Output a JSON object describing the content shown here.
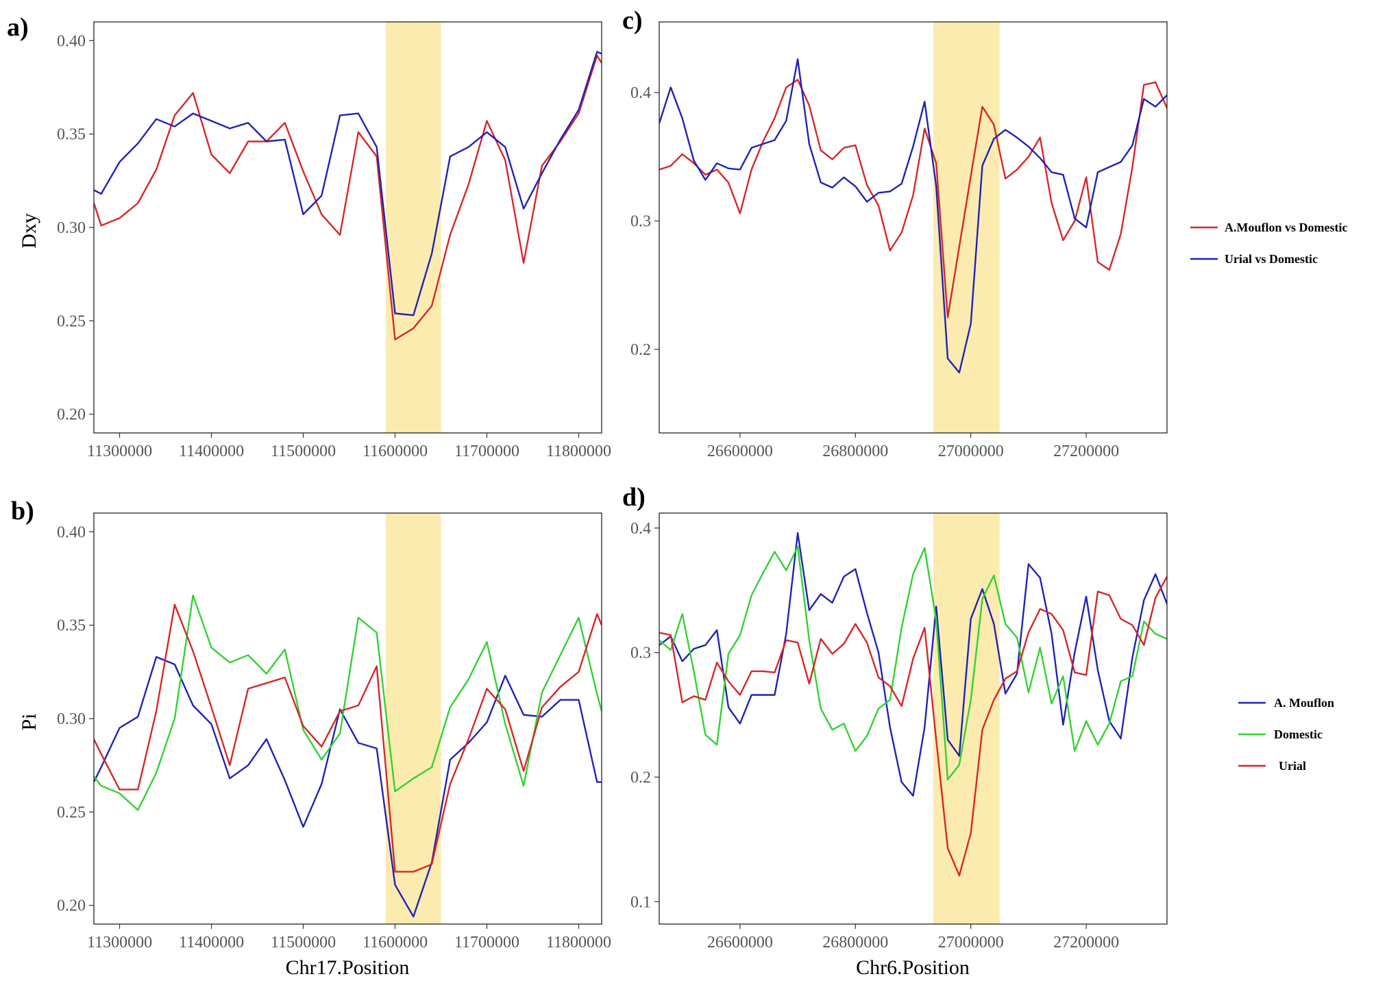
{
  "colors": {
    "highlight": "#FBEBAF",
    "red": "#D62728",
    "blue": "#1F23B5",
    "green": "#32D232"
  },
  "legends": {
    "dxy": [
      {
        "label": "A.Mouflon vs Domestic",
        "color": "#D62728"
      },
      {
        "label": "Urial vs Domestic",
        "color": "#1F23B5"
      }
    ],
    "pi": [
      {
        "label": "A. Mouflon",
        "color": "#1F23B5"
      },
      {
        "label": "Domestic",
        "color": "#32D232"
      },
      {
        "label": "Urial",
        "color": "#D62728"
      }
    ]
  },
  "chart_data": [
    {
      "id": "a",
      "panel_label": "a)",
      "type": "line",
      "ylabel": "Dxy",
      "xlabel": "",
      "xlim": [
        11272000,
        11825000
      ],
      "ylim": [
        0.19,
        0.41
      ],
      "xticks": [
        11300000,
        11400000,
        11500000,
        11600000,
        11700000,
        11800000
      ],
      "xtick_labels": [
        "11300000",
        "11400000",
        "11500000",
        "11600000",
        "11700000",
        "11800000"
      ],
      "yticks": [
        0.2,
        0.25,
        0.3,
        0.35,
        0.4
      ],
      "ytick_labels": [
        "0.20",
        "0.25",
        "0.30",
        "0.35",
        "0.40"
      ],
      "highlight": [
        11590000,
        11650000
      ],
      "x": [
        11272000,
        11280000,
        11300000,
        11320000,
        11340000,
        11360000,
        11380000,
        11400000,
        11420000,
        11440000,
        11460000,
        11480000,
        11500000,
        11520000,
        11540000,
        11560000,
        11580000,
        11600000,
        11620000,
        11640000,
        11660000,
        11680000,
        11700000,
        11720000,
        11740000,
        11760000,
        11780000,
        11800000,
        11820000,
        11825000
      ],
      "series": [
        {
          "name": "A.Mouflon vs Domestic",
          "color": "#D62728",
          "values": [
            0.313,
            0.301,
            0.305,
            0.313,
            0.331,
            0.36,
            0.372,
            0.339,
            0.329,
            0.346,
            0.346,
            0.356,
            0.33,
            0.307,
            0.296,
            0.351,
            0.338,
            0.24,
            0.246,
            0.258,
            0.296,
            0.323,
            0.357,
            0.336,
            0.281,
            0.333,
            0.346,
            0.361,
            0.392,
            0.388
          ]
        },
        {
          "name": "Urial vs Domestic",
          "color": "#1F23B5",
          "values": [
            0.32,
            0.318,
            0.335,
            0.345,
            0.358,
            0.354,
            0.361,
            0.357,
            0.353,
            0.356,
            0.346,
            0.347,
            0.307,
            0.317,
            0.36,
            0.361,
            0.343,
            0.254,
            0.253,
            0.286,
            0.338,
            0.343,
            0.351,
            0.343,
            0.31,
            0.329,
            0.347,
            0.363,
            0.394,
            0.393
          ]
        }
      ]
    },
    {
      "id": "b",
      "panel_label": "b)",
      "type": "line",
      "ylabel": "Pi",
      "xlabel": "Chr17.Position",
      "xlim": [
        11272000,
        11825000
      ],
      "ylim": [
        0.19,
        0.41
      ],
      "xticks": [
        11300000,
        11400000,
        11500000,
        11600000,
        11700000,
        11800000
      ],
      "xtick_labels": [
        "11300000",
        "11400000",
        "11500000",
        "11600000",
        "11700000",
        "11800000"
      ],
      "yticks": [
        0.2,
        0.25,
        0.3,
        0.35,
        0.4
      ],
      "ytick_labels": [
        "0.20",
        "0.25",
        "0.30",
        "0.35",
        "0.40"
      ],
      "highlight": [
        11590000,
        11650000
      ],
      "x": [
        11272000,
        11280000,
        11300000,
        11320000,
        11340000,
        11360000,
        11380000,
        11400000,
        11420000,
        11440000,
        11460000,
        11480000,
        11500000,
        11520000,
        11540000,
        11560000,
        11580000,
        11600000,
        11620000,
        11640000,
        11660000,
        11680000,
        11700000,
        11720000,
        11740000,
        11760000,
        11780000,
        11800000,
        11820000,
        11825000
      ],
      "series": [
        {
          "name": "A. Mouflon",
          "color": "#1F23B5",
          "values": [
            0.266,
            0.274,
            0.295,
            0.301,
            0.333,
            0.329,
            0.307,
            0.297,
            0.268,
            0.275,
            0.289,
            0.267,
            0.242,
            0.265,
            0.305,
            0.287,
            0.284,
            0.211,
            0.194,
            0.223,
            0.278,
            0.287,
            0.298,
            0.323,
            0.302,
            0.301,
            0.31,
            0.31,
            0.266,
            0.266
          ]
        },
        {
          "name": "Domestic",
          "color": "#32D232",
          "values": [
            0.269,
            0.264,
            0.26,
            0.251,
            0.271,
            0.3,
            0.366,
            0.338,
            0.33,
            0.334,
            0.324,
            0.337,
            0.294,
            0.278,
            0.292,
            0.354,
            0.346,
            0.261,
            0.268,
            0.274,
            0.306,
            0.321,
            0.341,
            0.297,
            0.264,
            0.314,
            0.334,
            0.354,
            0.313,
            0.304
          ]
        },
        {
          "name": "Urial",
          "color": "#D62728",
          "values": [
            0.289,
            0.281,
            0.262,
            0.262,
            0.304,
            0.361,
            0.336,
            0.306,
            0.275,
            0.316,
            0.319,
            0.322,
            0.296,
            0.285,
            0.304,
            0.307,
            0.328,
            0.218,
            0.218,
            0.222,
            0.265,
            0.289,
            0.316,
            0.305,
            0.272,
            0.306,
            0.317,
            0.325,
            0.356,
            0.35
          ]
        }
      ]
    },
    {
      "id": "c",
      "panel_label": "c)",
      "type": "line",
      "ylabel": "",
      "xlabel": "",
      "xlim": [
        26460000,
        27340000
      ],
      "ylim": [
        0.135,
        0.455
      ],
      "xticks": [
        26600000,
        26800000,
        27000000,
        27200000
      ],
      "xtick_labels": [
        "26600000",
        "26800000",
        "27000000",
        "27200000"
      ],
      "yticks": [
        0.2,
        0.3,
        0.4
      ],
      "ytick_labels": [
        "0.2",
        "0.3",
        "0.4"
      ],
      "highlight": [
        26935000,
        27050000
      ],
      "x": [
        26460000,
        26480000,
        26500000,
        26520000,
        26540000,
        26560000,
        26580000,
        26600000,
        26620000,
        26640000,
        26660000,
        26680000,
        26700000,
        26720000,
        26740000,
        26760000,
        26780000,
        26800000,
        26820000,
        26840000,
        26860000,
        26880000,
        26900000,
        26920000,
        26940000,
        26960000,
        26980000,
        27000000,
        27020000,
        27040000,
        27060000,
        27080000,
        27100000,
        27120000,
        27140000,
        27160000,
        27180000,
        27200000,
        27220000,
        27240000,
        27260000,
        27280000,
        27300000,
        27320000,
        27340000
      ],
      "series": [
        {
          "name": "A.Mouflon vs Domestic",
          "color": "#D62728",
          "values": [
            0.34,
            0.343,
            0.352,
            0.345,
            0.336,
            0.34,
            0.33,
            0.306,
            0.34,
            0.362,
            0.38,
            0.404,
            0.41,
            0.39,
            0.355,
            0.348,
            0.357,
            0.359,
            0.328,
            0.312,
            0.277,
            0.291,
            0.32,
            0.372,
            0.345,
            0.225,
            0.28,
            0.335,
            0.389,
            0.375,
            0.333,
            0.34,
            0.35,
            0.365,
            0.314,
            0.285,
            0.3,
            0.334,
            0.268,
            0.262,
            0.29,
            0.342,
            0.406,
            0.408,
            0.388
          ]
        },
        {
          "name": "Urial vs Domestic",
          "color": "#1F23B5",
          "values": [
            0.376,
            0.404,
            0.38,
            0.347,
            0.332,
            0.345,
            0.341,
            0.34,
            0.357,
            0.36,
            0.363,
            0.378,
            0.426,
            0.36,
            0.33,
            0.326,
            0.334,
            0.327,
            0.315,
            0.322,
            0.323,
            0.329,
            0.358,
            0.393,
            0.327,
            0.193,
            0.182,
            0.22,
            0.343,
            0.364,
            0.371,
            0.365,
            0.358,
            0.349,
            0.338,
            0.336,
            0.302,
            0.295,
            0.338,
            0.342,
            0.346,
            0.359,
            0.395,
            0.389,
            0.398
          ]
        }
      ]
    },
    {
      "id": "d",
      "panel_label": "d)",
      "type": "line",
      "ylabel": "",
      "xlabel": "Chr6.Position",
      "xlim": [
        26460000,
        27340000
      ],
      "ylim": [
        0.082,
        0.412
      ],
      "xticks": [
        26600000,
        26800000,
        27000000,
        27200000
      ],
      "xtick_labels": [
        "26600000",
        "26800000",
        "27000000",
        "27200000"
      ],
      "yticks": [
        0.1,
        0.2,
        0.3,
        0.4
      ],
      "ytick_labels": [
        "0.1",
        "0.2",
        "0.3",
        "0.4"
      ],
      "highlight": [
        26935000,
        27050000
      ],
      "x": [
        26460000,
        26480000,
        26500000,
        26520000,
        26540000,
        26560000,
        26580000,
        26600000,
        26620000,
        26640000,
        26660000,
        26680000,
        26700000,
        26720000,
        26740000,
        26760000,
        26780000,
        26800000,
        26820000,
        26840000,
        26860000,
        26880000,
        26900000,
        26920000,
        26940000,
        26960000,
        26980000,
        27000000,
        27020000,
        27040000,
        27060000,
        27080000,
        27100000,
        27120000,
        27140000,
        27160000,
        27180000,
        27200000,
        27220000,
        27240000,
        27260000,
        27280000,
        27300000,
        27320000,
        27340000
      ],
      "series": [
        {
          "name": "A. Mouflon",
          "color": "#1F23B5",
          "values": [
            0.306,
            0.313,
            0.293,
            0.303,
            0.306,
            0.318,
            0.256,
            0.243,
            0.266,
            0.266,
            0.266,
            0.315,
            0.396,
            0.334,
            0.347,
            0.34,
            0.361,
            0.367,
            0.332,
            0.3,
            0.24,
            0.196,
            0.185,
            0.24,
            0.337,
            0.23,
            0.217,
            0.327,
            0.351,
            0.323,
            0.267,
            0.283,
            0.371,
            0.36,
            0.315,
            0.242,
            0.3,
            0.345,
            0.286,
            0.245,
            0.231,
            0.296,
            0.342,
            0.363,
            0.339
          ]
        },
        {
          "name": "Domestic",
          "color": "#32D232",
          "values": [
            0.31,
            0.302,
            0.331,
            0.285,
            0.234,
            0.226,
            0.299,
            0.314,
            0.346,
            0.364,
            0.381,
            0.366,
            0.385,
            0.31,
            0.255,
            0.238,
            0.243,
            0.221,
            0.233,
            0.255,
            0.262,
            0.32,
            0.363,
            0.384,
            0.326,
            0.198,
            0.21,
            0.262,
            0.343,
            0.362,
            0.323,
            0.312,
            0.268,
            0.304,
            0.259,
            0.281,
            0.221,
            0.245,
            0.226,
            0.243,
            0.277,
            0.281,
            0.325,
            0.315,
            0.311
          ]
        },
        {
          "name": "Urial",
          "color": "#D62728",
          "values": [
            0.316,
            0.314,
            0.26,
            0.265,
            0.262,
            0.292,
            0.277,
            0.266,
            0.285,
            0.285,
            0.284,
            0.31,
            0.308,
            0.275,
            0.311,
            0.299,
            0.307,
            0.323,
            0.308,
            0.28,
            0.273,
            0.257,
            0.295,
            0.32,
            0.23,
            0.143,
            0.121,
            0.155,
            0.238,
            0.262,
            0.279,
            0.285,
            0.316,
            0.335,
            0.331,
            0.318,
            0.284,
            0.282,
            0.349,
            0.346,
            0.327,
            0.322,
            0.306,
            0.344,
            0.361
          ]
        }
      ]
    }
  ]
}
